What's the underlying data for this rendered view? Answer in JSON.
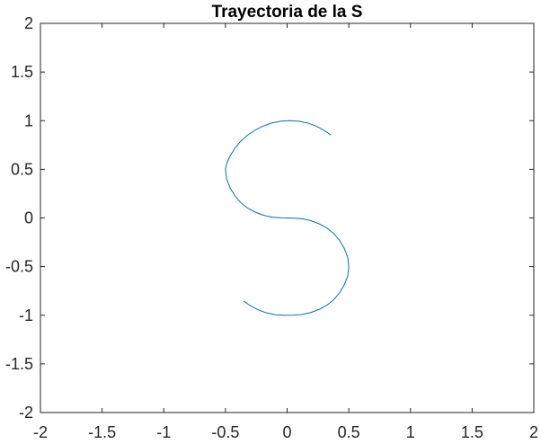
{
  "chart_data": {
    "type": "line",
    "title": "Trayectoria de la S",
    "xlabel": "",
    "ylabel": "",
    "xlim": [
      -2,
      2
    ],
    "ylim": [
      -2,
      2
    ],
    "xticks": [
      -2,
      -1.5,
      -1,
      -0.5,
      0,
      0.5,
      1,
      1.5,
      2
    ],
    "yticks": [
      -2,
      -1.5,
      -1,
      -0.5,
      0,
      0.5,
      1,
      1.5,
      2
    ],
    "xtick_labels": [
      "-2",
      "-1.5",
      "-1",
      "-0.5",
      "0",
      "0.5",
      "1",
      "1.5",
      "2"
    ],
    "ytick_labels": [
      "-2",
      "-1.5",
      "-1",
      "-0.5",
      "0",
      "0.5",
      "1",
      "1.5",
      "2"
    ],
    "grid": false,
    "series": [
      {
        "color": "#0072BD",
        "x": [
          0.354,
          0.298,
          0.236,
          0.169,
          0.098,
          0.025,
          -0.049,
          -0.122,
          -0.192,
          -0.259,
          -0.321,
          -0.376,
          -0.423,
          -0.462,
          -0.491,
          -0.5,
          -0.491,
          -0.462,
          -0.423,
          -0.376,
          -0.321,
          -0.259,
          -0.192,
          -0.122,
          -0.049,
          0.0,
          0.049,
          0.122,
          0.192,
          0.259,
          0.321,
          0.376,
          0.423,
          0.462,
          0.491,
          0.5,
          0.491,
          0.462,
          0.423,
          0.376,
          0.321,
          0.259,
          0.192,
          0.122,
          0.049,
          -0.025,
          -0.098,
          -0.169,
          -0.236,
          -0.298,
          -0.354
        ],
        "y": [
          0.854,
          0.902,
          0.944,
          0.975,
          0.994,
          1.0,
          0.995,
          0.977,
          0.946,
          0.904,
          0.851,
          0.789,
          0.718,
          0.639,
          0.555,
          0.5,
          0.402,
          0.309,
          0.227,
          0.158,
          0.102,
          0.06,
          0.028,
          0.008,
          0.001,
          0.0,
          -0.001,
          -0.008,
          -0.028,
          -0.06,
          -0.102,
          -0.158,
          -0.227,
          -0.309,
          -0.402,
          -0.5,
          -0.598,
          -0.691,
          -0.773,
          -0.842,
          -0.898,
          -0.94,
          -0.972,
          -0.992,
          -0.999,
          -1.0,
          -0.994,
          -0.975,
          -0.944,
          -0.902,
          -0.854
        ]
      }
    ]
  }
}
